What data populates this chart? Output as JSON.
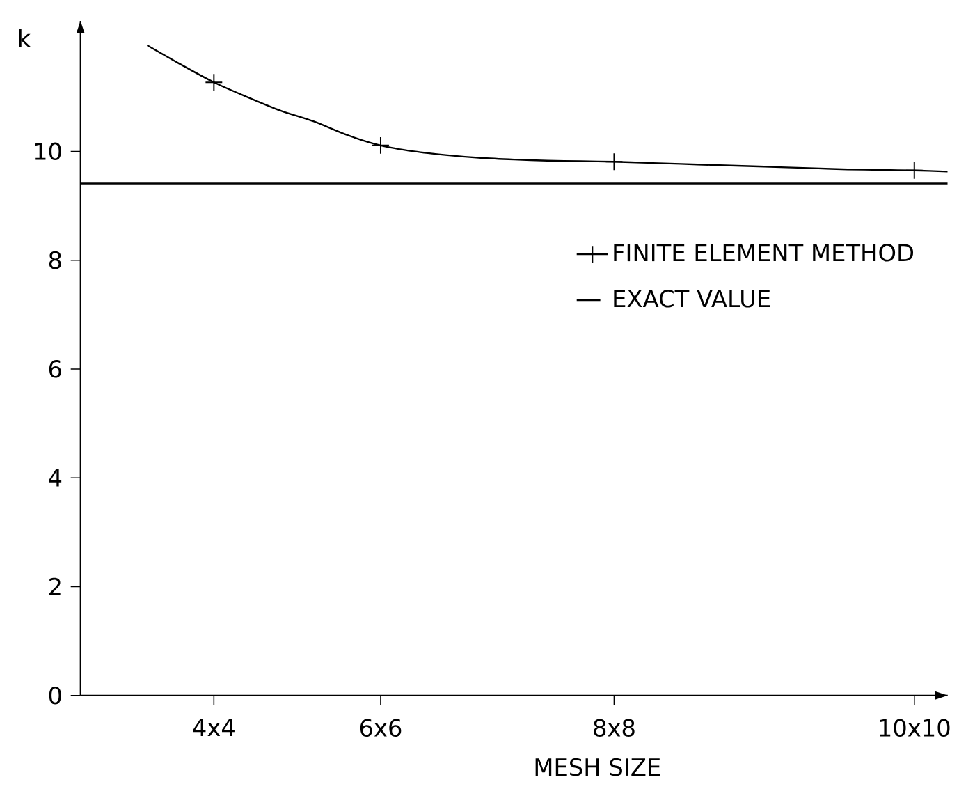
{
  "chart_data": {
    "type": "line",
    "xlabel": "MESH SIZE",
    "ylabel": "k",
    "categories": [
      null,
      null,
      null,
      null,
      "4x4",
      null,
      null,
      null,
      null,
      "6x6",
      null,
      null,
      null,
      null,
      null,
      null,
      "8x8",
      null,
      null,
      null,
      null,
      null,
      null,
      null,
      null,
      "10x10",
      null
    ],
    "ylim": [
      0,
      12.4
    ],
    "yticks": [
      0,
      2,
      4,
      6,
      8,
      10
    ],
    "grid": false,
    "legend": "right",
    "series": [
      {
        "color": "#000000",
        "marker": "none",
        "values": [
          null,
          null,
          11.95,
          11.6,
          11.27,
          11.0,
          10.75,
          10.55,
          10.3,
          10.11,
          10.0,
          9.93,
          9.88,
          9.85,
          9.83,
          9.82,
          9.81,
          9.79,
          9.77,
          9.75,
          9.73,
          9.71,
          9.69,
          9.67,
          9.66,
          9.65,
          9.63
        ]
      },
      {
        "type": "scatter",
        "name": "FINITE ELEMENT METHOD",
        "color": "#000000",
        "marker": "cross",
        "values": [
          null,
          null,
          null,
          null,
          11.27,
          null,
          null,
          null,
          null,
          10.11,
          null,
          null,
          null,
          null,
          null,
          null,
          9.81,
          null,
          null,
          null,
          null,
          null,
          null,
          null,
          null,
          9.65,
          null
        ]
      },
      {
        "name": "EXACT VALUE",
        "color": "#000000",
        "marker": "none",
        "values": [
          9.41,
          9.41,
          9.41,
          9.41,
          9.41,
          9.41,
          9.41,
          9.41,
          9.41,
          9.41,
          9.41,
          9.41,
          9.41,
          9.41,
          9.41,
          9.41,
          9.41,
          9.41,
          9.41,
          9.41,
          9.41,
          9.41,
          9.41,
          9.41,
          9.41,
          9.41,
          9.41
        ]
      }
    ]
  }
}
